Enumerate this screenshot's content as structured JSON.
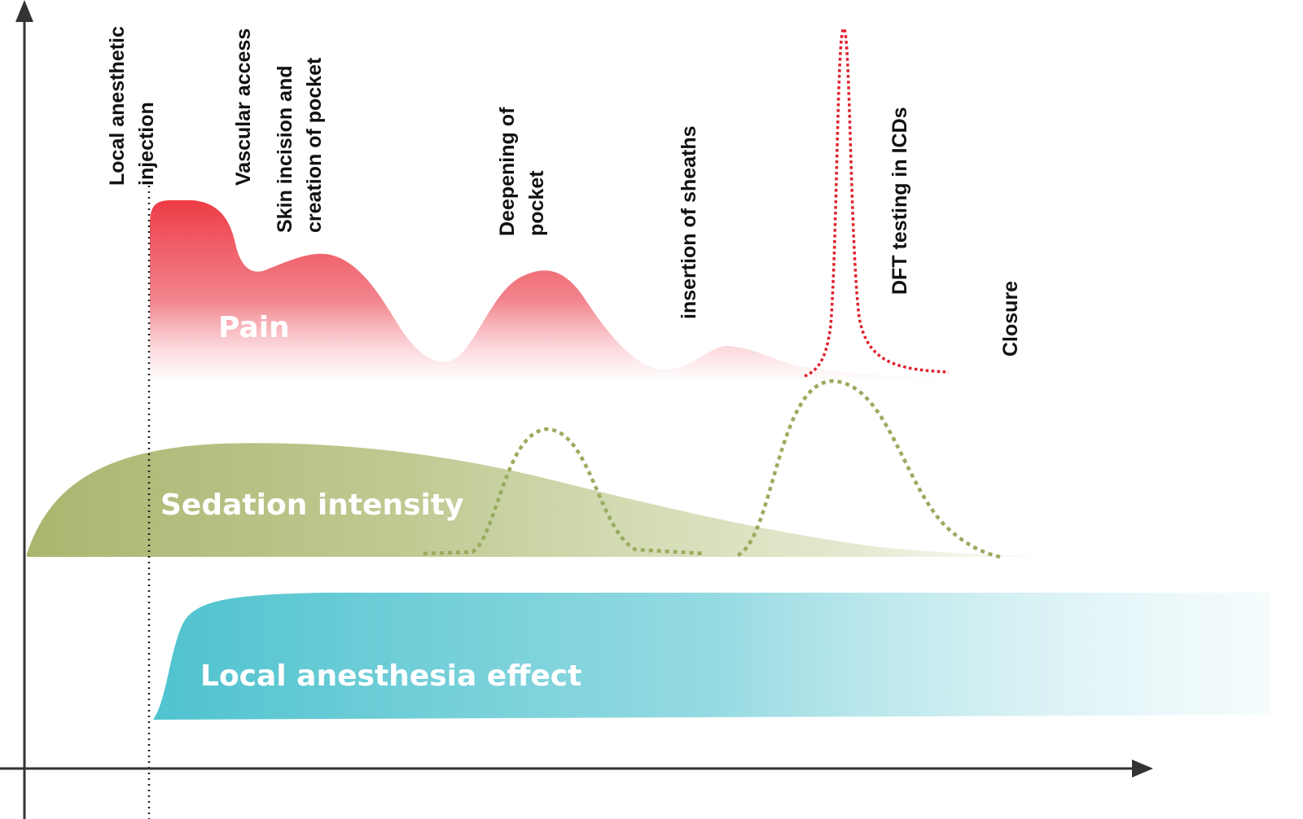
{
  "steps": [
    {
      "id": "local-anesthetic-injection",
      "lines": [
        "Local anesthetic",
        "injection"
      ]
    },
    {
      "id": "vascular-access",
      "lines": [
        "Vascular access"
      ]
    },
    {
      "id": "skin-incision",
      "lines": [
        "Skin incision and",
        "creation of pocket"
      ]
    },
    {
      "id": "deepening-of-pocket",
      "lines": [
        "Deepening of",
        "pocket"
      ]
    },
    {
      "id": "insertion-of-sheaths",
      "lines": [
        "insertion of sheaths"
      ]
    },
    {
      "id": "dft-testing",
      "lines": [
        "DFT testing in ICDs"
      ]
    },
    {
      "id": "closure",
      "lines": [
        "Closure"
      ]
    }
  ],
  "curves": {
    "pain": {
      "label": "Pain",
      "color": "#ee3b45"
    },
    "sedation": {
      "label": "Sedation intensity",
      "color": "#a3b06a"
    },
    "local_anesthesia": {
      "label": "Local anesthesia effect",
      "color": "#4fc3cf"
    }
  },
  "colors": {
    "axis": "#333333",
    "dft_spike": "#e0202c",
    "sedation_dotted": "#9aab5e"
  }
}
